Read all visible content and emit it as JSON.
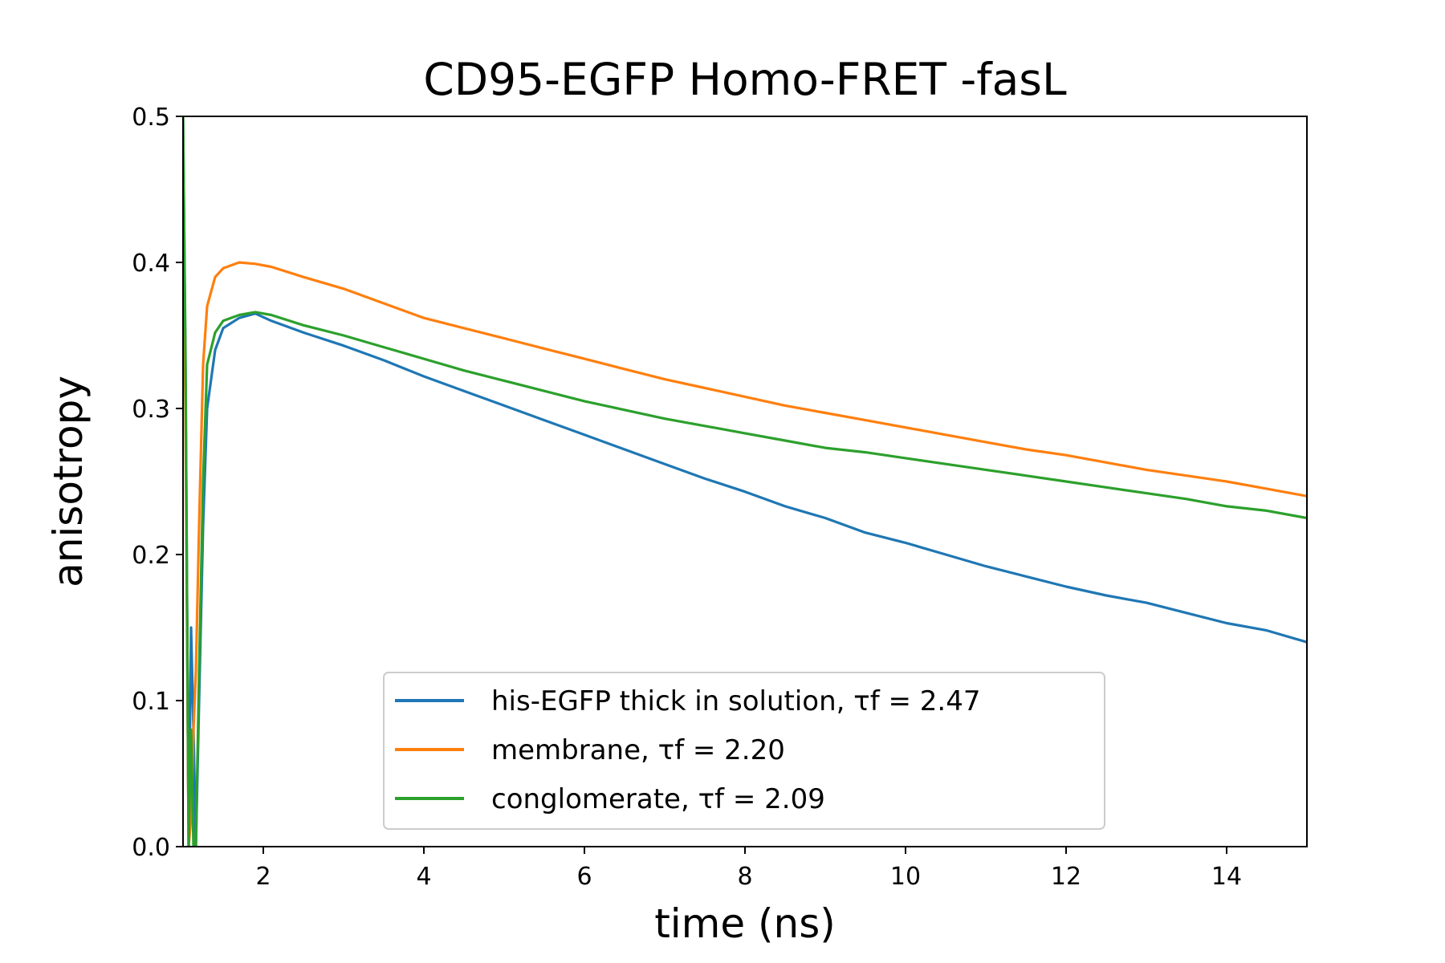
{
  "chart_data": {
    "type": "line",
    "title": "CD95-EGFP Homo-FRET -fasL",
    "xlabel": "time (ns)",
    "ylabel": "anisotropy",
    "xlim": [
      1.0,
      15.0
    ],
    "ylim": [
      0.0,
      0.5
    ],
    "xticks": [
      2,
      4,
      6,
      8,
      10,
      12,
      14
    ],
    "yticks": [
      0.0,
      0.1,
      0.2,
      0.3,
      0.4,
      0.5
    ],
    "xtick_labels": [
      "2",
      "4",
      "6",
      "8",
      "10",
      "12",
      "14"
    ],
    "ytick_labels": [
      "0.0",
      "0.1",
      "0.2",
      "0.3",
      "0.4",
      "0.5"
    ],
    "grid": false,
    "legend_position": "lower-center",
    "series": [
      {
        "name": "his-EGFP thick in solution, τf = 2.47",
        "color": "#1f77b4",
        "x": [
          1.0,
          1.03,
          1.07,
          1.1,
          1.13,
          1.16,
          1.2,
          1.25,
          1.3,
          1.4,
          1.5,
          1.7,
          1.9,
          2.1,
          2.5,
          3.0,
          3.5,
          4.0,
          4.5,
          5.0,
          5.5,
          6.0,
          6.5,
          7.0,
          7.5,
          8.0,
          8.5,
          9.0,
          9.5,
          10.0,
          10.5,
          11.0,
          11.5,
          12.0,
          12.5,
          13.0,
          13.5,
          14.0,
          14.5,
          15.0
        ],
        "y": [
          0.5,
          0.33,
          0.0,
          0.15,
          0.08,
          0.0,
          0.1,
          0.22,
          0.3,
          0.34,
          0.355,
          0.362,
          0.365,
          0.36,
          0.352,
          0.343,
          0.333,
          0.322,
          0.312,
          0.302,
          0.292,
          0.282,
          0.272,
          0.262,
          0.252,
          0.243,
          0.233,
          0.225,
          0.215,
          0.208,
          0.2,
          0.192,
          0.185,
          0.178,
          0.172,
          0.167,
          0.16,
          0.153,
          0.148,
          0.14
        ]
      },
      {
        "name": "membrane, τf = 2.20",
        "color": "#ff7f0e",
        "x": [
          1.0,
          1.03,
          1.07,
          1.1,
          1.13,
          1.16,
          1.2,
          1.25,
          1.3,
          1.4,
          1.5,
          1.7,
          1.9,
          2.1,
          2.5,
          3.0,
          3.5,
          4.0,
          4.5,
          5.0,
          5.5,
          6.0,
          6.5,
          7.0,
          7.5,
          8.0,
          8.5,
          9.0,
          9.5,
          10.0,
          10.5,
          11.0,
          11.5,
          12.0,
          12.5,
          13.0,
          13.5,
          14.0,
          14.5,
          15.0
        ],
        "y": [
          0.445,
          0.3,
          0.0,
          0.02,
          0.08,
          0.12,
          0.22,
          0.33,
          0.37,
          0.39,
          0.396,
          0.4,
          0.399,
          0.397,
          0.39,
          0.382,
          0.372,
          0.362,
          0.355,
          0.348,
          0.341,
          0.334,
          0.327,
          0.32,
          0.314,
          0.308,
          0.302,
          0.297,
          0.292,
          0.287,
          0.282,
          0.277,
          0.272,
          0.268,
          0.263,
          0.258,
          0.254,
          0.25,
          0.245,
          0.24
        ]
      },
      {
        "name": "conglomerate, τf = 2.09",
        "color": "#2ca02c",
        "x": [
          1.0,
          1.03,
          1.07,
          1.1,
          1.13,
          1.16,
          1.2,
          1.25,
          1.3,
          1.4,
          1.5,
          1.7,
          1.9,
          2.1,
          2.5,
          3.0,
          3.5,
          4.0,
          4.5,
          5.0,
          5.5,
          6.0,
          6.5,
          7.0,
          7.5,
          8.0,
          8.5,
          9.0,
          9.5,
          10.0,
          10.5,
          11.0,
          11.5,
          12.0,
          12.5,
          13.0,
          13.5,
          14.0,
          14.5,
          15.0
        ],
        "y": [
          0.5,
          0.34,
          0.0,
          0.08,
          0.0,
          0.0,
          0.12,
          0.25,
          0.33,
          0.352,
          0.36,
          0.364,
          0.366,
          0.364,
          0.357,
          0.35,
          0.342,
          0.334,
          0.326,
          0.319,
          0.312,
          0.305,
          0.299,
          0.293,
          0.288,
          0.283,
          0.278,
          0.273,
          0.27,
          0.266,
          0.262,
          0.258,
          0.254,
          0.25,
          0.246,
          0.242,
          0.238,
          0.233,
          0.23,
          0.225
        ]
      }
    ]
  }
}
